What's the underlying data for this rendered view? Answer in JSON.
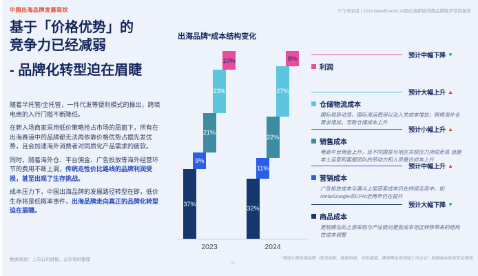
{
  "page": {
    "eyebrow": "中国出海品牌发展现状",
    "copyright": "©飞书深诺 | 2024 MeetBrands 中国出海新锐消费品牌数字营销报告",
    "page_number": "16"
  },
  "left_panel": {
    "title_line1": "基于「价格优势」的",
    "title_line2": "竞争力已经减弱",
    "title_line3": "- 品牌化转型迫在眉睫",
    "paragraphs": [
      {
        "text": "随着半托管/全托管，一件代发等便利模式的推出，跨境电商的入行门槛不断降低。",
        "highlight": ""
      },
      {
        "text": "在新入场商家采用低价策略抢占市场的局面下，所有在出海赛道中的品牌都无法再依靠价格优势占据先发优势，且会加速海外消费者对同质化产品需求的疲软。",
        "highlight": ""
      },
      {
        "text": "同时，随着海外仓、平台佣金、广告投放等海外经营环节的费用不断上调，",
        "highlight": "传统走性价比路线的品牌利润受损，甚至出现了生存挑战。"
      },
      {
        "text": "成本压力下，中国出海品牌的发展路径转型在即，低价生存将是低概率事件，",
        "highlight": "出海品牌走向真正的品牌化转型迫在眉睫。"
      }
    ],
    "source": "数据来源：上市公司财报，公开资料整理"
  },
  "chart_data": {
    "type": "bar",
    "subtype": "stacked-waterfall",
    "title": "出海品牌*成本结构变化",
    "unit": "%",
    "categories": [
      "2023",
      "2024"
    ],
    "series": [
      {
        "name": "利润",
        "color": "#E94E9C",
        "values": [
          10,
          8
        ],
        "label_color": "#13255C"
      },
      {
        "name": "仓储物流成本",
        "color": "#5BC6DE",
        "values": [
          23,
          27
        ]
      },
      {
        "name": "销售成本",
        "color": "#3E8CA1",
        "values": [
          21,
          22
        ]
      },
      {
        "name": "营销成本",
        "color": "#2B5EE8",
        "values": [
          9,
          11
        ]
      },
      {
        "name": "商品成本",
        "color": "#16376E",
        "values": [
          37,
          32
        ]
      }
    ],
    "ylim": [
      0,
      100
    ],
    "grid": false,
    "legend_position": "right"
  },
  "legend": {
    "items": [
      {
        "label": "利润",
        "color": "#E94E9C",
        "tag": "预计中幅下降",
        "direction": "down",
        "desc": ""
      },
      {
        "label": "仓储物流成本",
        "color": "#5BC6DE",
        "tag": "预计大幅上升",
        "direction": "up",
        "desc": "国际局势动荡，国际海运费用以及入关成本增加；跨境海外仓需求增加，导致仓储成本上升"
      },
      {
        "label": "销售成本",
        "color": "#3E8CA1",
        "tag": "预计小幅上升",
        "direction": "up",
        "desc": "电商平台佣金上升，且不同国家与地区关税压力持续走高 自建本土运营和客服团队的劳动力和人员磨合成本上升"
      },
      {
        "label": "营销成本",
        "color": "#2B5EE8",
        "tag": "预计中幅上升",
        "direction": "up",
        "desc": "广告投放成本与漏斗上层获客成本仍在持续走高中，如 Meta/Google的CPM近两年仍在提升"
      },
      {
        "label": "商品成本",
        "color": "#16376E",
        "tag": "预计大幅下降",
        "direction": "down",
        "desc": "更规模化的上游采购与产业链向更低成本地区转移带来的结构性成本调整"
      }
    ],
    "direction_colors": {
      "up": "#DA3B26",
      "down": "#1E9E50"
    }
  },
  "footnote": "*筛选头部出海品牌（安克创新、致欧科技、华凯易佰、赛维等出海领域上市企业）财报成本利润变化预测"
}
